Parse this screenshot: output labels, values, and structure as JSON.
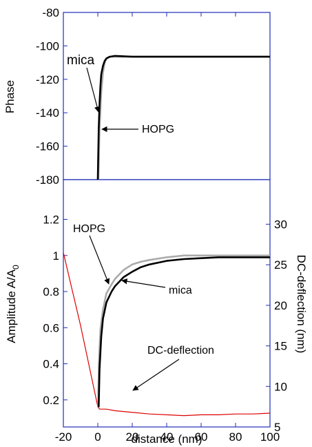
{
  "chart_data": [
    {
      "type": "line",
      "panel": "top",
      "ylabel": "Phase",
      "xlim": [
        -20,
        100
      ],
      "ylim": [
        -180,
        -80
      ],
      "yticks": [
        -80,
        -100,
        -120,
        -140,
        -160,
        -180
      ],
      "grid": false,
      "series": [
        {
          "name": "mica",
          "color": "#000000",
          "x": [
            0,
            0.5,
            1,
            1.5,
            2,
            3,
            4,
            5,
            7,
            10,
            20,
            40,
            60,
            80,
            100
          ],
          "y": [
            -180,
            -150,
            -135,
            -124,
            -117,
            -112,
            -109,
            -107.5,
            -106.5,
            -106,
            -106.5,
            -106.5,
            -106.5,
            -106.5,
            -106.5
          ]
        },
        {
          "name": "HOPG",
          "color": "#aaaaaa",
          "x": [
            0.3,
            1,
            2,
            3,
            4,
            5,
            7,
            10,
            20,
            40,
            60,
            80,
            100
          ],
          "y": [
            -180,
            -150,
            -128,
            -116,
            -110,
            -107.5,
            -106.5,
            -106.5,
            -106.5,
            -106.5,
            -106.5,
            -106.5,
            -106.5
          ]
        }
      ],
      "annotations": [
        {
          "text": "mica",
          "target": [
            0.5,
            -140
          ]
        },
        {
          "text": "HOPG",
          "target": [
            0.5,
            -151
          ]
        }
      ]
    },
    {
      "type": "line",
      "panel": "bottom",
      "xlabel": "distance (nm)",
      "ylabel": "Amplitude A/A",
      "ylabel_sub": "0",
      "ylabel_right": "DC-deflection (nm)",
      "xlim": [
        -20,
        100
      ],
      "xticks": [
        -20,
        0,
        20,
        40,
        60,
        80,
        100
      ],
      "ylim": [
        0.05,
        1.42
      ],
      "yticks": [
        "0.2",
        "0.4",
        "0.6",
        "0.8",
        "1",
        "1.2"
      ],
      "ylim_right": [
        5,
        35.5
      ],
      "yticks_right": [
        5,
        10,
        15,
        20,
        25,
        30
      ],
      "grid": false,
      "series": [
        {
          "name": "mica",
          "color": "#000000",
          "x": [
            0.5,
            1,
            2,
            3,
            5,
            8,
            10,
            15,
            20,
            25,
            30,
            40,
            50,
            60,
            70,
            80,
            90,
            100
          ],
          "y": [
            0.16,
            0.37,
            0.55,
            0.65,
            0.74,
            0.8,
            0.83,
            0.88,
            0.91,
            0.935,
            0.95,
            0.97,
            0.98,
            0.985,
            0.99,
            0.99,
            0.99,
            0.99
          ]
        },
        {
          "name": "HOPG",
          "color": "#aaaaaa",
          "x": [
            0.2,
            0.6,
            1.5,
            3,
            5,
            8,
            10,
            15,
            20,
            25,
            30,
            40,
            50,
            60,
            70,
            80,
            90,
            100
          ],
          "y": [
            0.16,
            0.4,
            0.59,
            0.7,
            0.79,
            0.84,
            0.87,
            0.92,
            0.95,
            0.965,
            0.975,
            0.99,
            1.0,
            1.0,
            1.0,
            1.0,
            1.0,
            1.0
          ]
        },
        {
          "name": "DC-deflection",
          "color": "#dd0000",
          "axis": "right",
          "x": [
            -20,
            -15,
            -10,
            -5,
            0,
            1,
            5,
            10,
            20,
            30,
            40,
            50,
            60,
            70,
            80,
            90,
            100
          ],
          "y": [
            26.5,
            22,
            17.5,
            12.5,
            7.5,
            7.2,
            7.2,
            7.0,
            6.8,
            6.6,
            6.5,
            6.4,
            6.5,
            6.5,
            6.6,
            6.6,
            6.7
          ]
        }
      ],
      "annotations": [
        {
          "text": "HOPG",
          "target": [
            3.5,
            0.8
          ]
        },
        {
          "text": "mica",
          "target": [
            8,
            0.82
          ]
        },
        {
          "text": "DC-deflection",
          "target": [
            10,
            7.3
          ]
        }
      ]
    }
  ]
}
